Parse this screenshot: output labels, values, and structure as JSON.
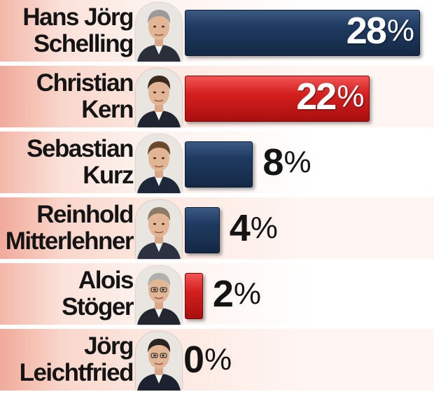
{
  "chart_data": {
    "type": "bar",
    "orientation": "horizontal",
    "title": "",
    "xlabel": "",
    "ylabel": "",
    "categories": [
      [
        "Hans Jörg",
        "Schelling"
      ],
      [
        "Christian",
        "Kern"
      ],
      [
        "Sebastian",
        "Kurz"
      ],
      [
        "Reinhold",
        "Mitterlehner"
      ],
      [
        "Alois",
        "Stöger"
      ],
      [
        "Jörg",
        "Leichtfried"
      ]
    ],
    "values": [
      28,
      22,
      8,
      4,
      2,
      0
    ],
    "value_labels": [
      "28",
      "22",
      "8",
      "4",
      "2",
      "0"
    ],
    "unit": "%",
    "bar_colors": [
      "#1c365a",
      "#d42424",
      "#1c365a",
      "#1c365a",
      "#d42424",
      "#d42424"
    ],
    "xlim": [
      0,
      28
    ],
    "grid": false,
    "legend": "none"
  },
  "colors": {
    "blue_bar": "#1c365a",
    "red_bar": "#d42424",
    "row_tint": "#f3b7a9"
  },
  "rows": [
    {
      "icon": "person-portrait-icon"
    },
    {
      "icon": "person-portrait-icon"
    },
    {
      "icon": "person-portrait-icon"
    },
    {
      "icon": "person-portrait-icon"
    },
    {
      "icon": "person-portrait-icon"
    },
    {
      "icon": "person-portrait-icon"
    }
  ]
}
